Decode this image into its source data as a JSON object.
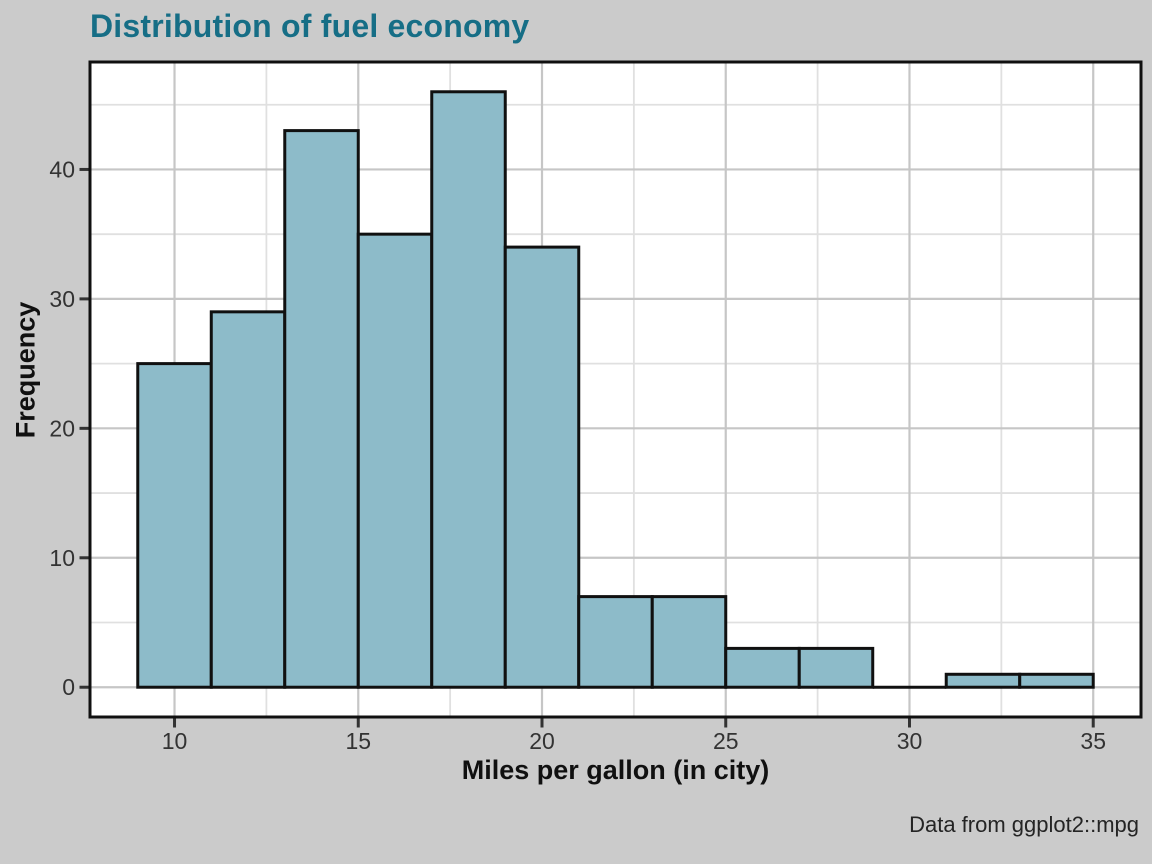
{
  "figure": {
    "title": "Distribution of fuel economy",
    "caption": "Data from ggplot2::mpg"
  },
  "colors": {
    "background": "#cbcbcb",
    "panel_background": "#ffffff",
    "panel_border": "#101010",
    "title": "#166e86",
    "bar_fill": "#8dbbc9",
    "bar_stroke": "#101010",
    "grid_major": "#c6c6c6",
    "grid_minor": "#e0e0e0",
    "tick_mark": "#333333",
    "tick_label": "#333333",
    "axis_title": "#101010",
    "caption": "#242424"
  },
  "chart_data": {
    "type": "bar",
    "subtype": "histogram",
    "title": "Distribution of fuel economy",
    "xlabel": "Miles per gallon (in city)",
    "ylabel": "Frequency",
    "caption": "Data from ggplot2::mpg",
    "bin_width": 2,
    "bin_starts": [
      9,
      11,
      13,
      15,
      17,
      19,
      21,
      23,
      25,
      27,
      29,
      31,
      33
    ],
    "counts": [
      25,
      29,
      43,
      35,
      46,
      34,
      7,
      7,
      3,
      3,
      0,
      1,
      1
    ],
    "x_ticks": [
      10,
      15,
      20,
      25,
      30,
      35
    ],
    "y_ticks": [
      0,
      10,
      20,
      30,
      40
    ],
    "x_minor": [
      12.5,
      17.5,
      22.5,
      27.5,
      32.5
    ],
    "y_minor": [
      5,
      15,
      25,
      35,
      45
    ],
    "xlim": [
      7.7,
      36.3
    ],
    "ylim": [
      -2.3,
      48.3
    ],
    "grid": true,
    "legend_position": "none"
  }
}
